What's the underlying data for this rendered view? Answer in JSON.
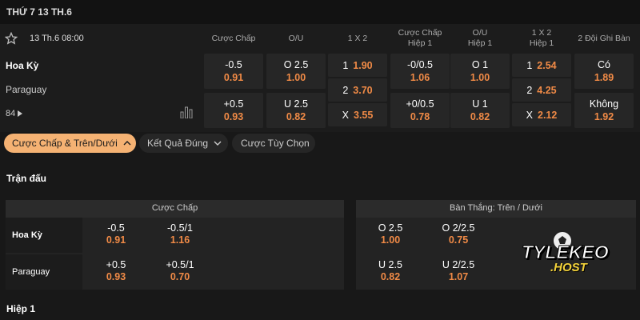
{
  "header": {
    "date": "THỨ 7 13 TH.6"
  },
  "match": {
    "time": "13 Th.6 08:00",
    "home": "Hoa Kỳ",
    "away": "Paraguay",
    "more": "84"
  },
  "columns": [
    "Cược Chấp",
    "O/U",
    "1 X 2",
    "Cược Chấp\nHiệp 1",
    "O/U\nHiệp 1",
    "1 X 2\nHiệp 1",
    "2 Đội Ghi Bàn"
  ],
  "markets": [
    [
      {
        "label": "-0.5",
        "odds": "0.91"
      },
      {
        "label": "+0.5",
        "odds": "0.93"
      }
    ],
    [
      {
        "label": "O 2.5",
        "odds": "1.00"
      },
      {
        "label": "U 2.5",
        "odds": "0.82"
      }
    ],
    [
      {
        "label": "1",
        "odds": "1.90"
      },
      {
        "label": "2",
        "odds": "3.70"
      },
      {
        "label": "X",
        "odds": "3.55"
      }
    ],
    [
      {
        "label": "-0/0.5",
        "odds": "1.06"
      },
      {
        "label": "+0/0.5",
        "odds": "0.78"
      }
    ],
    [
      {
        "label": "O 1",
        "odds": "1.00"
      },
      {
        "label": "U 1",
        "odds": "0.82"
      }
    ],
    [
      {
        "label": "1",
        "odds": "2.54"
      },
      {
        "label": "2",
        "odds": "4.25"
      },
      {
        "label": "X",
        "odds": "2.12"
      }
    ],
    [
      {
        "label": "Có",
        "odds": "1.89"
      },
      {
        "label": "Không",
        "odds": "1.92"
      }
    ]
  ],
  "tabs": [
    "Cược Chấp & Trên/Dưới",
    "Kết Quả Đúng",
    "Cược Tùy Chọn"
  ],
  "section": "Trận đấu",
  "panels": [
    {
      "title": "Cược Chấp",
      "rows": [
        {
          "team": "Hoa Kỳ",
          "cells": [
            {
              "label": "-0.5",
              "odds": "0.91"
            },
            {
              "label": "-0.5/1",
              "odds": "1.16"
            }
          ]
        },
        {
          "team": "Paraguay",
          "cells": [
            {
              "label": "+0.5",
              "odds": "0.93"
            },
            {
              "label": "+0.5/1",
              "odds": "0.70"
            }
          ]
        }
      ]
    },
    {
      "title": "Bàn Thắng: Trên / Dưới",
      "rows": [
        {
          "cells": [
            {
              "label": "O 2.5",
              "odds": "1.00"
            },
            {
              "label": "O 2/2.5",
              "odds": "0.75"
            }
          ]
        },
        {
          "cells": [
            {
              "label": "U 2.5",
              "odds": "0.82"
            },
            {
              "label": "U 2/2.5",
              "odds": "1.07"
            }
          ]
        }
      ]
    }
  ],
  "watermark": {
    "line1": "TYLEKEO",
    "line2": ".HOST"
  },
  "footer_section": "Hiệp 1"
}
